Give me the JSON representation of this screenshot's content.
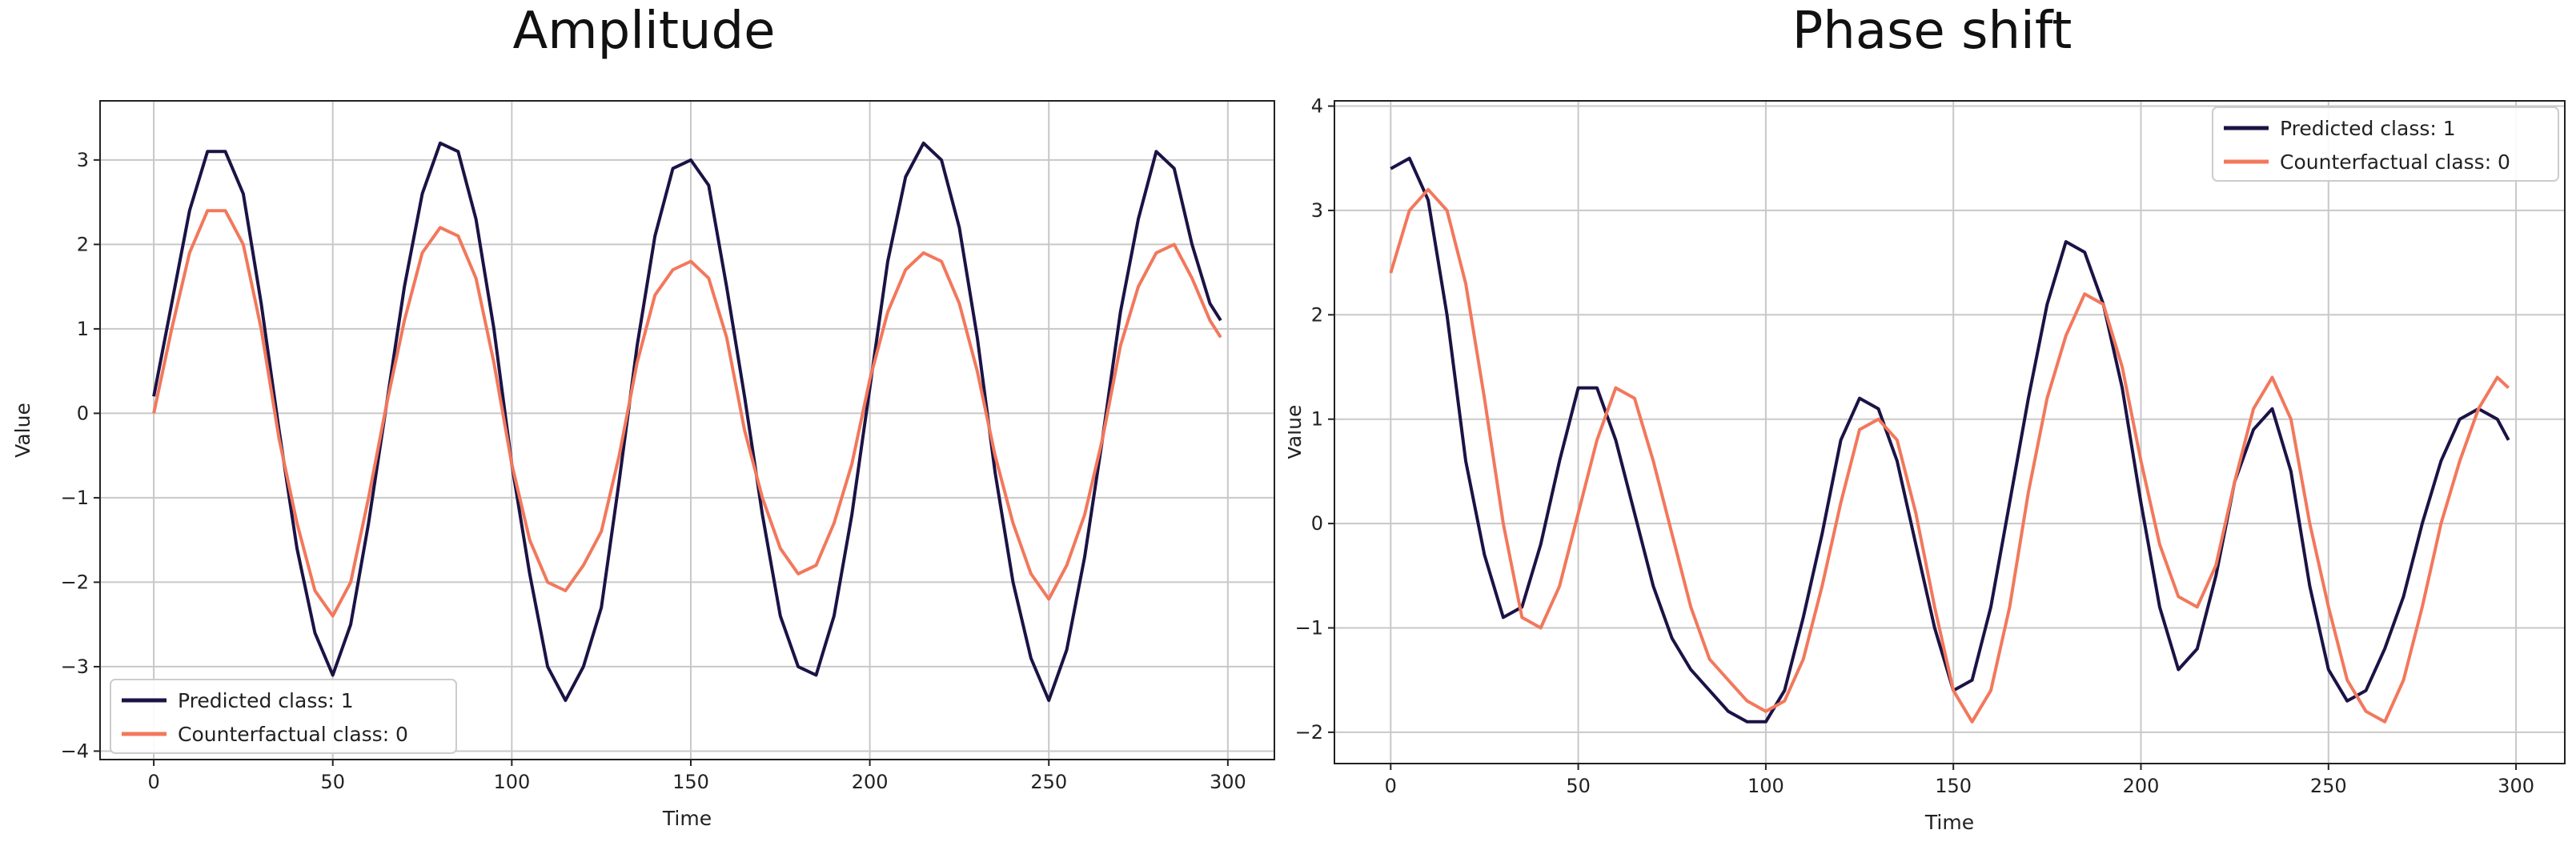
{
  "charts": [
    {
      "title": "Amplitude",
      "xlabel": "Time",
      "ylabel": "Value",
      "xlim": [
        -15,
        313
      ],
      "ylim": [
        -4.1,
        3.7
      ],
      "xticks": [
        0,
        50,
        100,
        150,
        200,
        250,
        300
      ],
      "yticks": [
        -4,
        -3,
        -2,
        -1,
        0,
        1,
        2,
        3
      ],
      "legend_position": "lower-left",
      "series_style": [
        {
          "name": "Predicted class: 1",
          "color": "#1b1345"
        },
        {
          "name": "Counterfactual class: 0",
          "color": "#f2785c"
        }
      ]
    },
    {
      "title": "Phase shift",
      "xlabel": "Time",
      "ylabel": "Value",
      "xlim": [
        -15,
        313
      ],
      "ylim": [
        -2.3,
        4.05
      ],
      "xticks": [
        0,
        50,
        100,
        150,
        200,
        250,
        300
      ],
      "yticks": [
        -2,
        -1,
        0,
        1,
        2,
        3,
        4
      ],
      "legend_position": "upper-right",
      "series_style": [
        {
          "name": "Predicted class: 1",
          "color": "#1b1345"
        },
        {
          "name": "Counterfactual class: 0",
          "color": "#f2785c"
        }
      ]
    }
  ],
  "chart_data": [
    {
      "type": "line",
      "title": "Amplitude",
      "xlabel": "Time",
      "ylabel": "Value",
      "xlim": [
        -15,
        313
      ],
      "ylim": [
        -4.1,
        3.7
      ],
      "grid": true,
      "legend": "lower-left",
      "x": [
        0,
        5,
        10,
        15,
        20,
        25,
        30,
        35,
        40,
        45,
        50,
        55,
        60,
        65,
        70,
        75,
        80,
        85,
        90,
        95,
        100,
        105,
        110,
        115,
        120,
        125,
        130,
        135,
        140,
        145,
        150,
        155,
        160,
        165,
        170,
        175,
        180,
        185,
        190,
        195,
        200,
        205,
        210,
        215,
        220,
        225,
        230,
        235,
        240,
        245,
        250,
        255,
        260,
        265,
        270,
        275,
        280,
        285,
        290,
        295,
        298
      ],
      "series": [
        {
          "name": "Predicted class: 1",
          "color": "#1b1345",
          "values": [
            0.2,
            1.3,
            2.4,
            3.1,
            3.1,
            2.6,
            1.3,
            -0.2,
            -1.6,
            -2.6,
            -3.1,
            -2.5,
            -1.3,
            0.1,
            1.5,
            2.6,
            3.2,
            3.1,
            2.3,
            1.0,
            -0.6,
            -1.9,
            -3.0,
            -3.4,
            -3.0,
            -2.3,
            -0.8,
            0.8,
            2.1,
            2.9,
            3.0,
            2.7,
            1.5,
            0.2,
            -1.2,
            -2.4,
            -3.0,
            -3.1,
            -2.4,
            -1.2,
            0.3,
            1.8,
            2.8,
            3.2,
            3.0,
            2.2,
            0.9,
            -0.7,
            -2.0,
            -2.9,
            -3.4,
            -2.8,
            -1.7,
            -0.3,
            1.2,
            2.3,
            3.1,
            2.9,
            2.0,
            1.3,
            1.1
          ]
        },
        {
          "name": "Counterfactual class: 0",
          "color": "#f2785c",
          "values": [
            0.0,
            1.0,
            1.9,
            2.4,
            2.4,
            2.0,
            1.0,
            -0.3,
            -1.3,
            -2.1,
            -2.4,
            -2.0,
            -1.0,
            0.1,
            1.1,
            1.9,
            2.2,
            2.1,
            1.6,
            0.6,
            -0.6,
            -1.5,
            -2.0,
            -2.1,
            -1.8,
            -1.4,
            -0.5,
            0.6,
            1.4,
            1.7,
            1.8,
            1.6,
            0.9,
            -0.2,
            -1.0,
            -1.6,
            -1.9,
            -1.8,
            -1.3,
            -0.6,
            0.4,
            1.2,
            1.7,
            1.9,
            1.8,
            1.3,
            0.5,
            -0.5,
            -1.3,
            -1.9,
            -2.2,
            -1.8,
            -1.2,
            -0.3,
            0.8,
            1.5,
            1.9,
            2.0,
            1.6,
            1.1,
            0.9
          ]
        }
      ]
    },
    {
      "type": "line",
      "title": "Phase shift",
      "xlabel": "Time",
      "ylabel": "Value",
      "xlim": [
        -15,
        313
      ],
      "ylim": [
        -2.3,
        4.05
      ],
      "grid": true,
      "legend": "upper-right",
      "x": [
        0,
        5,
        10,
        15,
        20,
        25,
        30,
        35,
        40,
        45,
        50,
        55,
        60,
        65,
        70,
        75,
        80,
        85,
        90,
        95,
        100,
        105,
        110,
        115,
        120,
        125,
        130,
        135,
        140,
        145,
        150,
        155,
        160,
        165,
        170,
        175,
        180,
        185,
        190,
        195,
        200,
        205,
        210,
        215,
        220,
        225,
        230,
        235,
        240,
        245,
        250,
        255,
        260,
        265,
        270,
        275,
        280,
        285,
        290,
        295,
        298
      ],
      "series": [
        {
          "name": "Predicted class: 1",
          "color": "#1b1345",
          "values": [
            3.4,
            3.5,
            3.1,
            2.0,
            0.6,
            -0.3,
            -0.9,
            -0.8,
            -0.2,
            0.6,
            1.3,
            1.3,
            0.8,
            0.1,
            -0.6,
            -1.1,
            -1.4,
            -1.6,
            -1.8,
            -1.9,
            -1.9,
            -1.6,
            -0.9,
            -0.1,
            0.8,
            1.2,
            1.1,
            0.6,
            -0.2,
            -1.0,
            -1.6,
            -1.5,
            -0.8,
            0.2,
            1.2,
            2.1,
            2.7,
            2.6,
            2.1,
            1.3,
            0.2,
            -0.8,
            -1.4,
            -1.2,
            -0.5,
            0.4,
            0.9,
            1.1,
            0.5,
            -0.6,
            -1.4,
            -1.7,
            -1.6,
            -1.2,
            -0.7,
            0.0,
            0.6,
            1.0,
            1.1,
            1.0,
            0.8
          ]
        },
        {
          "name": "Counterfactual class: 0",
          "color": "#f2785c",
          "values": [
            2.4,
            3.0,
            3.2,
            3.0,
            2.3,
            1.2,
            0.0,
            -0.9,
            -1.0,
            -0.6,
            0.1,
            0.8,
            1.3,
            1.2,
            0.6,
            -0.1,
            -0.8,
            -1.3,
            -1.5,
            -1.7,
            -1.8,
            -1.7,
            -1.3,
            -0.6,
            0.2,
            0.9,
            1.0,
            0.8,
            0.1,
            -0.8,
            -1.6,
            -1.9,
            -1.6,
            -0.8,
            0.3,
            1.2,
            1.8,
            2.2,
            2.1,
            1.5,
            0.6,
            -0.2,
            -0.7,
            -0.8,
            -0.4,
            0.4,
            1.1,
            1.4,
            1.0,
            0.0,
            -0.8,
            -1.5,
            -1.8,
            -1.9,
            -1.5,
            -0.8,
            0.0,
            0.6,
            1.1,
            1.4,
            1.3
          ]
        }
      ]
    }
  ]
}
